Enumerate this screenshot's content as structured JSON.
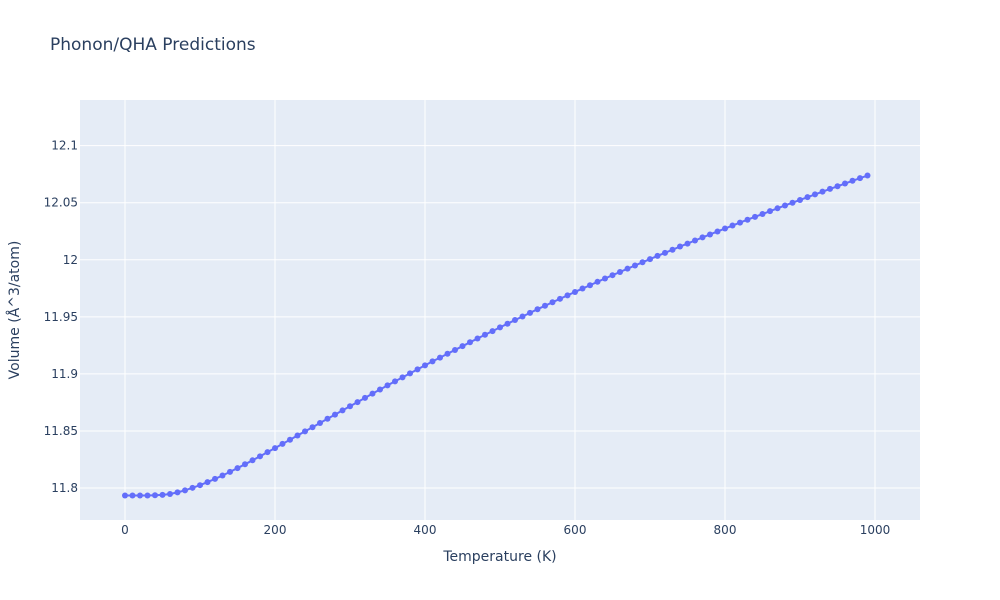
{
  "chart_data": {
    "type": "scatter",
    "mode": "lines+markers",
    "title": "Phonon/QHA Predictions",
    "xlabel": "Temperature (K)",
    "ylabel": "Volume (Å^3/atom)",
    "xlim": [
      -60,
      1060
    ],
    "ylim": [
      11.772,
      12.14
    ],
    "x_ticks": [
      0,
      200,
      400,
      600,
      800,
      1000
    ],
    "y_ticks": [
      11.8,
      11.85,
      11.9,
      11.95,
      12,
      12.05,
      12.1
    ],
    "x_tick_labels": [
      "0",
      "200",
      "400",
      "600",
      "800",
      "1000"
    ],
    "y_tick_labels": [
      "11.8",
      "11.85",
      "11.9",
      "11.95",
      "12",
      "12.05",
      "12.1"
    ],
    "grid": true,
    "colors": {
      "series": "#636efa",
      "plot_bg": "#e5ecf6",
      "grid": "#ffffff",
      "text": "#2a3f5f"
    },
    "series": [
      {
        "x": [
          0,
          10,
          20,
          30,
          40,
          50,
          60,
          70,
          80,
          90,
          100,
          110,
          120,
          130,
          140,
          150,
          160,
          170,
          180,
          190,
          200,
          210,
          220,
          230,
          240,
          250,
          260,
          270,
          280,
          290,
          300,
          310,
          320,
          330,
          340,
          350,
          360,
          370,
          380,
          390,
          400,
          410,
          420,
          430,
          440,
          450,
          460,
          470,
          480,
          490,
          500,
          510,
          520,
          530,
          540,
          550,
          560,
          570,
          580,
          590,
          600,
          610,
          620,
          630,
          640,
          650,
          660,
          670,
          680,
          690,
          700,
          710,
          720,
          730,
          740,
          750,
          760,
          770,
          780,
          790,
          800,
          810,
          820,
          830,
          840,
          850,
          860,
          870,
          880,
          890,
          900,
          910,
          920,
          930,
          940,
          950,
          960,
          970,
          980,
          990
        ],
        "y": [
          11.7935,
          11.7935,
          11.7935,
          11.7935,
          11.7937,
          11.794,
          11.7948,
          11.7962,
          11.798,
          11.8002,
          11.8025,
          11.8052,
          11.808,
          11.811,
          11.8142,
          11.8175,
          11.8208,
          11.8243,
          11.8278,
          11.8315,
          11.835,
          11.8387,
          11.8423,
          11.846,
          11.8497,
          11.8533,
          11.857,
          11.8607,
          11.8643,
          11.868,
          11.8717,
          11.8753,
          11.879,
          11.8827,
          11.8863,
          11.89,
          11.8935,
          11.897,
          11.9005,
          11.904,
          11.9075,
          11.911,
          11.9143,
          11.9177,
          11.921,
          11.9243,
          11.9277,
          11.931,
          11.9343,
          11.9375,
          11.9408,
          11.944,
          11.9472,
          11.9503,
          11.9535,
          11.9567,
          11.9597,
          11.9628,
          11.9658,
          11.9688,
          11.9718,
          11.9748,
          11.9777,
          11.9807,
          11.9836,
          11.9865,
          11.9893,
          11.9922,
          11.995,
          11.9978,
          12.0006,
          12.0034,
          12.0061,
          12.0088,
          12.0116,
          12.0142,
          12.0169,
          12.0196,
          12.0222,
          12.0248,
          12.0274,
          12.03,
          12.0326,
          12.0351,
          12.0376,
          12.0401,
          12.0426,
          12.0451,
          12.0476,
          12.05,
          12.0524,
          12.0549,
          12.0573,
          12.0597,
          12.0621,
          12.0644,
          12.0668,
          12.0692,
          12.0715,
          12.0738
        ]
      }
    ]
  }
}
